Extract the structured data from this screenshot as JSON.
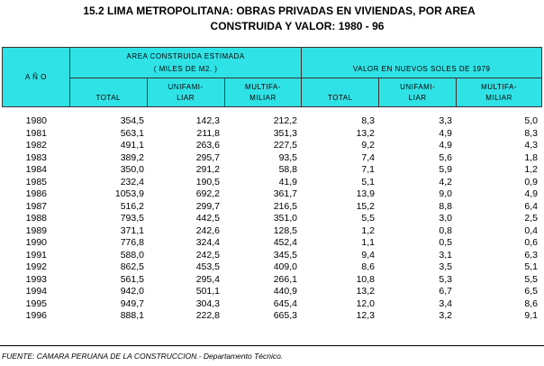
{
  "title": {
    "line1": "15.2  LIMA METROPOLITANA: OBRAS PRIVADAS EN VIVIENDAS, POR AREA",
    "line2": "CONSTRUIDA Y VALOR: 1980 - 96"
  },
  "header": {
    "year": "A Ñ O",
    "area_group_l1": "AREA  CONSTRUIDA  ESTIMADA",
    "area_group_l2": "( MILES DE M2. )",
    "value_group": "VALOR  EN  NUEVOS  SOLES  DE  1979",
    "total": "TOTAL",
    "unifam_l1": "UNIFAMI-",
    "unifam_l2": "LIAR",
    "multifam_l1": "MULTIFA-",
    "multifam_l2": "MILIAR"
  },
  "rows": [
    [
      "1980",
      "354,5",
      "142,3",
      "212,2",
      "8,3",
      "3,3",
      "5,0"
    ],
    [
      "1981",
      "563,1",
      "211,8",
      "351,3",
      "13,2",
      "4,9",
      "8,3"
    ],
    [
      "1982",
      "491,1",
      "263,6",
      "227,5",
      "9,2",
      "4,9",
      "4,3"
    ],
    [
      "1983",
      "389,2",
      "295,7",
      "93,5",
      "7,4",
      "5,6",
      "1,8"
    ],
    [
      "1984",
      "350,0",
      "291,2",
      "58,8",
      "7,1",
      "5,9",
      "1,2"
    ],
    [
      "1985",
      "232,4",
      "190,5",
      "41,9",
      "5,1",
      "4,2",
      "0,9"
    ],
    [
      "1986",
      "1053,9",
      "692,2",
      "361,7",
      "13,9",
      "9,0",
      "4,9"
    ],
    [
      "1987",
      "516,2",
      "299,7",
      "216,5",
      "15,2",
      "8,8",
      "6,4"
    ],
    [
      "1988",
      "793,5",
      "442,5",
      "351,0",
      "5,5",
      "3,0",
      "2,5"
    ],
    [
      "1989",
      "371,1",
      "242,6",
      "128,5",
      "1,2",
      "0,8",
      "0,4"
    ],
    [
      "1990",
      "776,8",
      "324,4",
      "452,4",
      "1,1",
      "0,5",
      "0,6"
    ],
    [
      "1991",
      "588,0",
      "242,5",
      "345,5",
      "9,4",
      "3,1",
      "6,3"
    ],
    [
      "1992",
      "862,5",
      "453,5",
      "409,0",
      "8,6",
      "3,5",
      "5,1"
    ],
    [
      "1993",
      "561,5",
      "295,4",
      "266,1",
      "10,8",
      "5,3",
      "5,5"
    ],
    [
      "1994",
      "942,0",
      "501,1",
      "440,9",
      "13,2",
      "6,7",
      "6,5"
    ],
    [
      "1995",
      "949,7",
      "304,3",
      "645,4",
      "12,0",
      "3,4",
      "8,6"
    ],
    [
      "1996",
      "888,1",
      "222,8",
      "665,3",
      "12,3",
      "3,2",
      "9,1"
    ]
  ],
  "footer": "FUENTE: CAMARA PERUANA DE LA CONSTRUCCION.- Departamento Técnico."
}
